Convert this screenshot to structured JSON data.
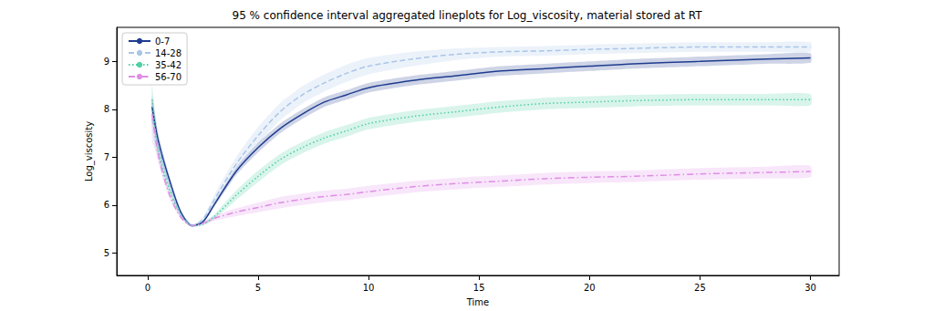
{
  "chart_data": {
    "type": "line",
    "title": "95 % confidence interval aggregated lineplots for Log_viscosity, material stored at RT",
    "x_label": "Time",
    "y_label": "Log_viscosity",
    "x": [
      0.2,
      0.5,
      1,
      1.5,
      2,
      2.5,
      3,
      4,
      5,
      6,
      7,
      8,
      9,
      10,
      12,
      14,
      16,
      18,
      20,
      22,
      25,
      28,
      30
    ],
    "series": [
      {
        "name": "0-7",
        "color": "#1f3c8f",
        "line_style": "solid",
        "values": [
          8.05,
          7.3,
          6.5,
          5.85,
          5.57,
          5.65,
          6.0,
          6.7,
          7.2,
          7.6,
          7.9,
          8.15,
          8.3,
          8.45,
          8.6,
          8.7,
          8.8,
          8.85,
          8.9,
          8.95,
          9.0,
          9.05,
          9.07
        ],
        "lower": [
          7.85,
          7.15,
          6.42,
          5.81,
          5.55,
          5.62,
          5.95,
          6.62,
          7.1,
          7.5,
          7.8,
          8.05,
          8.2,
          8.35,
          8.5,
          8.6,
          8.7,
          8.75,
          8.8,
          8.85,
          8.9,
          8.95,
          8.97
        ],
        "upper": [
          8.25,
          7.45,
          6.58,
          5.89,
          5.59,
          5.68,
          6.05,
          6.78,
          7.3,
          7.7,
          8.0,
          8.25,
          8.4,
          8.55,
          8.7,
          8.8,
          8.9,
          8.95,
          9.0,
          9.05,
          9.1,
          9.15,
          9.17
        ]
      },
      {
        "name": "14-28",
        "color": "#a9c6e8",
        "line_style": "dashed",
        "values": [
          7.8,
          7.2,
          6.4,
          5.8,
          5.57,
          5.7,
          6.1,
          6.85,
          7.45,
          7.95,
          8.3,
          8.55,
          8.75,
          8.9,
          9.05,
          9.15,
          9.2,
          9.22,
          9.25,
          9.27,
          9.3,
          9.3,
          9.3
        ],
        "lower": [
          7.3,
          7.0,
          6.3,
          5.75,
          5.55,
          5.65,
          6.0,
          6.7,
          7.27,
          7.77,
          8.12,
          8.37,
          8.57,
          8.73,
          8.9,
          9.03,
          9.1,
          9.12,
          9.15,
          9.17,
          9.2,
          9.2,
          9.2
        ],
        "upper": [
          8.3,
          7.4,
          6.5,
          5.85,
          5.59,
          5.75,
          6.2,
          7.0,
          7.63,
          8.13,
          8.48,
          8.73,
          8.93,
          9.07,
          9.2,
          9.27,
          9.3,
          9.32,
          9.35,
          9.37,
          9.4,
          9.4,
          9.4
        ]
      },
      {
        "name": "35-42",
        "color": "#4fcfa6",
        "line_style": "dotted",
        "values": [
          8.2,
          7.1,
          6.3,
          5.8,
          5.57,
          5.6,
          5.75,
          6.2,
          6.6,
          6.95,
          7.2,
          7.4,
          7.55,
          7.7,
          7.85,
          7.95,
          8.05,
          8.12,
          8.15,
          8.18,
          8.2,
          8.2,
          8.2
        ],
        "lower": [
          7.9,
          6.95,
          6.22,
          5.76,
          5.55,
          5.57,
          5.7,
          6.1,
          6.48,
          6.83,
          7.08,
          7.28,
          7.43,
          7.58,
          7.73,
          7.83,
          7.93,
          8.0,
          8.03,
          8.06,
          8.08,
          8.08,
          8.08
        ],
        "upper": [
          8.5,
          7.25,
          6.38,
          5.84,
          5.59,
          5.63,
          5.8,
          6.3,
          6.72,
          7.07,
          7.32,
          7.52,
          7.67,
          7.82,
          7.97,
          8.07,
          8.17,
          8.24,
          8.27,
          8.3,
          8.32,
          8.32,
          8.32
        ]
      },
      {
        "name": "56-70",
        "color": "#df8de6",
        "line_style": "dashdot",
        "values": [
          7.9,
          7.0,
          6.2,
          5.75,
          5.57,
          5.62,
          5.72,
          5.85,
          5.95,
          6.05,
          6.12,
          6.18,
          6.22,
          6.28,
          6.38,
          6.45,
          6.5,
          6.55,
          6.58,
          6.6,
          6.65,
          6.68,
          6.7
        ],
        "lower": [
          7.6,
          6.85,
          6.12,
          5.71,
          5.55,
          5.59,
          5.67,
          5.77,
          5.85,
          5.93,
          6.0,
          6.06,
          6.1,
          6.16,
          6.26,
          6.33,
          6.38,
          6.43,
          6.46,
          6.48,
          6.53,
          6.56,
          6.58
        ],
        "upper": [
          8.2,
          7.15,
          6.28,
          5.79,
          5.59,
          5.65,
          5.77,
          5.93,
          6.05,
          6.17,
          6.24,
          6.3,
          6.34,
          6.4,
          6.5,
          6.57,
          6.62,
          6.67,
          6.7,
          6.72,
          6.77,
          6.8,
          6.82
        ]
      }
    ],
    "xlim": [
      -1.4,
      31.3
    ],
    "xticks": [
      0,
      5,
      10,
      15,
      20,
      25,
      30
    ],
    "ylim": [
      4.53,
      9.71
    ],
    "yticks": [
      5,
      6,
      7,
      8,
      9
    ],
    "grid": false,
    "legend": "upper left"
  }
}
